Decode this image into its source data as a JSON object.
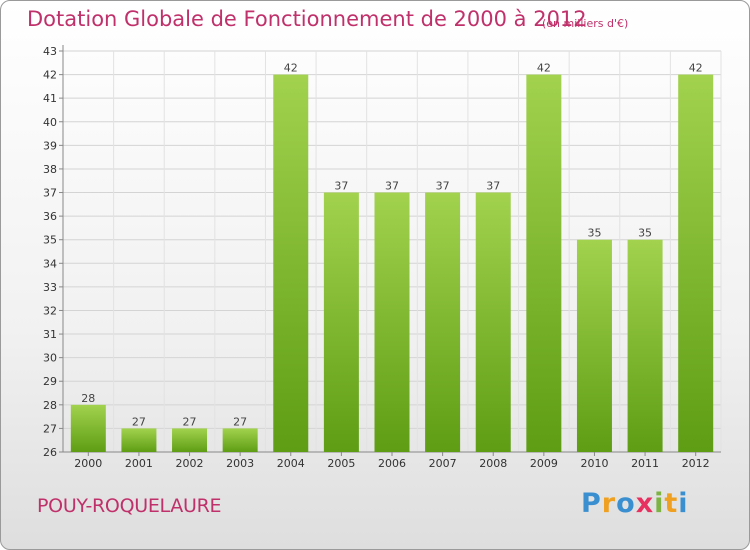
{
  "chart_data": {
    "type": "bar",
    "title": "Dotation Globale de Fonctionnement de 2000 à 2012",
    "subtitle": "(en milliers d'€)",
    "categories": [
      "2000",
      "2001",
      "2002",
      "2003",
      "2004",
      "2005",
      "2006",
      "2007",
      "2008",
      "2009",
      "2010",
      "2011",
      "2012"
    ],
    "values": [
      28,
      27,
      27,
      27,
      42,
      37,
      37,
      37,
      37,
      42,
      35,
      35,
      42
    ],
    "ylim": [
      26,
      43
    ],
    "yticks": [
      26,
      27,
      28,
      29,
      30,
      31,
      32,
      33,
      34,
      35,
      36,
      37,
      38,
      39,
      40,
      41,
      42,
      43
    ],
    "xlabel": "",
    "ylabel": "",
    "grid": true,
    "bar_color": "#7cc13a"
  },
  "footer": {
    "town": "POUY-ROQUELAURE",
    "logo_letters": [
      "P",
      "r",
      "o",
      "x",
      "i",
      "t",
      "i"
    ],
    "logo_colors": [
      "#3a8fd0",
      "#f0a020",
      "#3a8fd0",
      "#e83060",
      "#7cb342",
      "#f0a020",
      "#3a8fd0"
    ]
  }
}
